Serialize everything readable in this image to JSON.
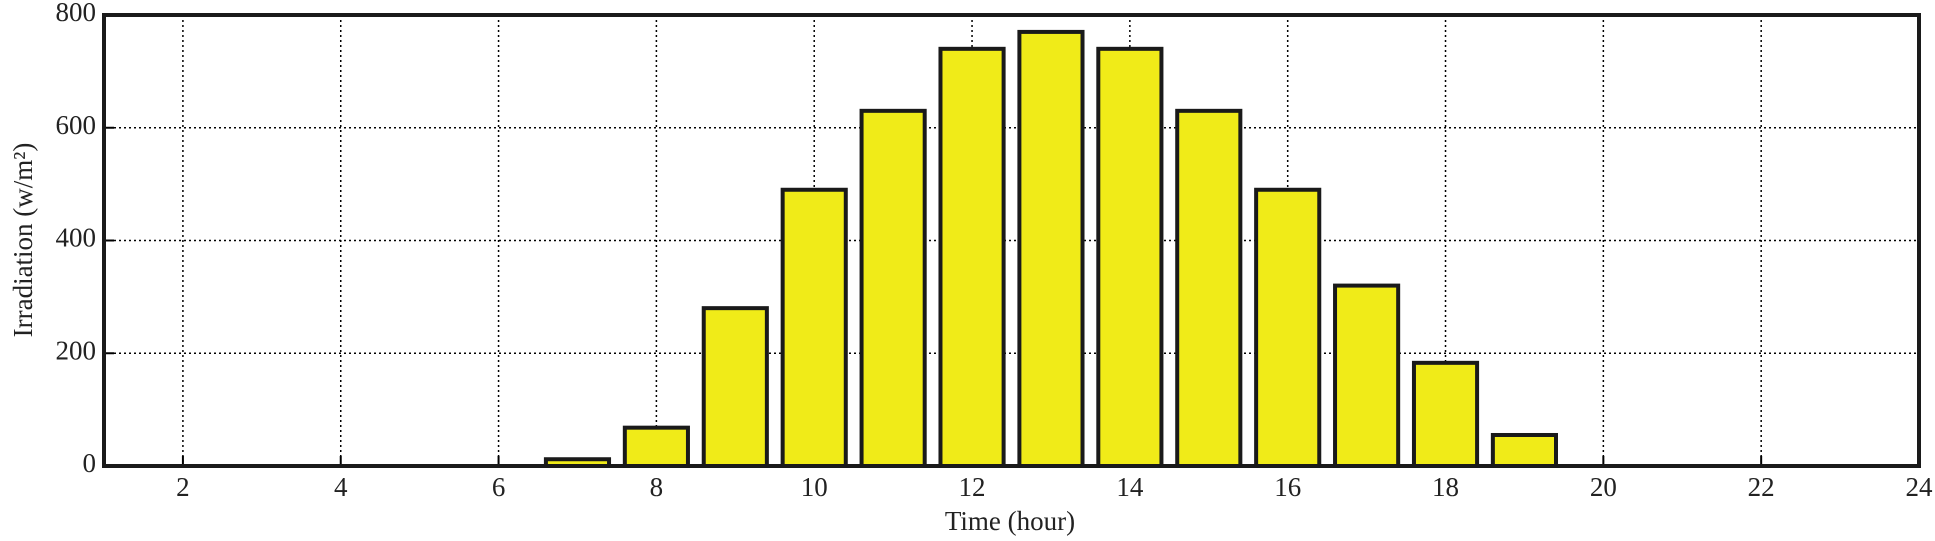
{
  "chart_data": {
    "type": "bar",
    "x": [
      7,
      8,
      9,
      10,
      11,
      12,
      13,
      14,
      15,
      16,
      17,
      18,
      19
    ],
    "values": [
      12,
      68,
      280,
      490,
      630,
      740,
      770,
      740,
      630,
      490,
      320,
      183,
      55
    ],
    "color": "#f0eb18",
    "xlabel": "Time (hour)",
    "ylabel": "Irradiation (w/m²)",
    "xlim": [
      1,
      24
    ],
    "xticks": [
      2,
      4,
      6,
      8,
      10,
      12,
      14,
      16,
      18,
      20,
      22,
      24
    ],
    "ylim": [
      0,
      800
    ],
    "yticks": [
      0,
      200,
      400,
      600,
      800
    ],
    "grid": true
  }
}
